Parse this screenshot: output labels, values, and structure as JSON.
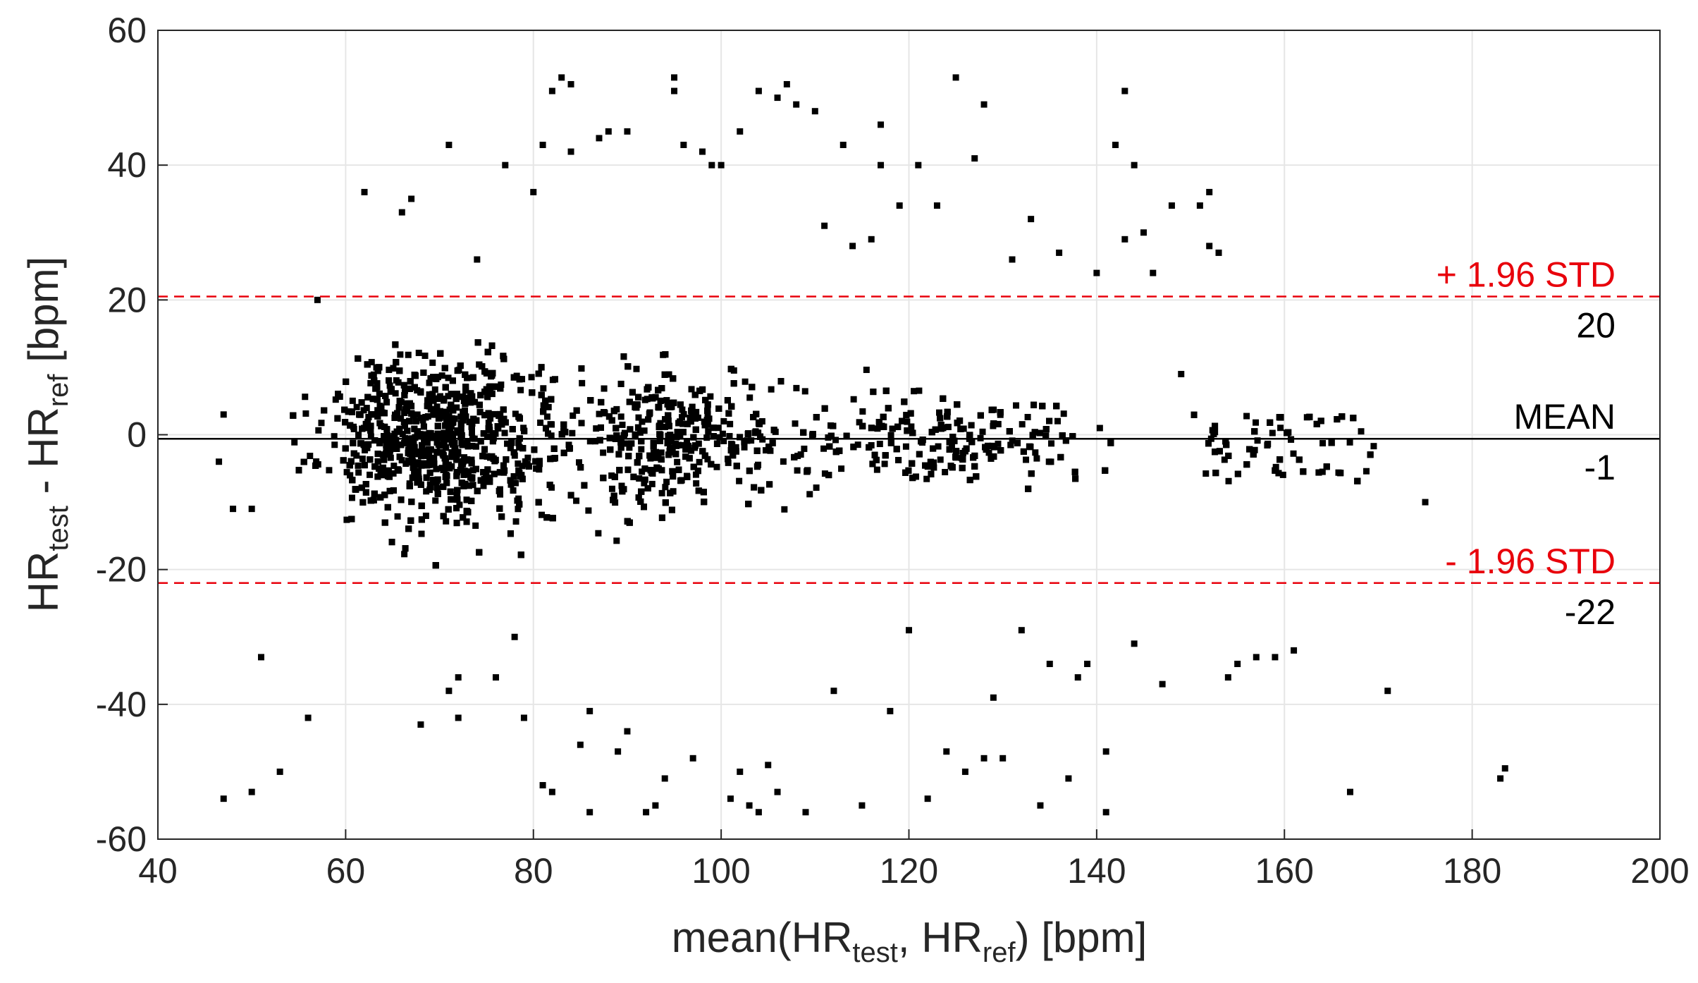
{
  "chart_data": {
    "type": "scatter",
    "title": "",
    "xlabel": {
      "prefix": "mean(HR",
      "sub1": "test",
      "middle": ", HR",
      "sub2": "ref",
      "suffix": ") [bpm]"
    },
    "ylabel": {
      "prefix": "HR",
      "sub1": "test",
      "middle": " - HR",
      "sub2": "ref",
      "suffix": " [bpm]"
    },
    "xlim": [
      40,
      200
    ],
    "ylim": [
      -60,
      60
    ],
    "xticks": [
      40,
      60,
      80,
      100,
      120,
      140,
      160,
      180,
      200
    ],
    "yticks": [
      -60,
      -40,
      -20,
      0,
      20,
      40,
      60
    ],
    "grid": true,
    "marker_color": "#000000",
    "reference_lines": [
      {
        "name": "upper",
        "label": "+ 1.96 STD",
        "value_label": "20",
        "y": 20.5,
        "style": "dashed",
        "color": "#e8000b"
      },
      {
        "name": "mean",
        "label": "MEAN",
        "value_label": "-1",
        "y": -0.6,
        "style": "solid",
        "color": "#000000"
      },
      {
        "name": "lower",
        "label": "- 1.96 STD",
        "value_label": "-22",
        "y": -22,
        "style": "dashed",
        "color": "#e8000b"
      }
    ],
    "outlier_points": [
      [
        47,
        -54
      ],
      [
        50,
        -53
      ],
      [
        51,
        -33
      ],
      [
        53,
        -50
      ],
      [
        56,
        -42
      ],
      [
        48,
        -11
      ],
      [
        50,
        -11
      ],
      [
        46.5,
        -4
      ],
      [
        47,
        3
      ],
      [
        57,
        20
      ],
      [
        62,
        36
      ],
      [
        66,
        33
      ],
      [
        67,
        35
      ],
      [
        68,
        -43
      ],
      [
        71,
        -38
      ],
      [
        71,
        43
      ],
      [
        72,
        -36
      ],
      [
        72,
        -42
      ],
      [
        74,
        26
      ],
      [
        76,
        -36
      ],
      [
        77,
        40
      ],
      [
        78,
        -30
      ],
      [
        79,
        -42
      ],
      [
        80,
        36
      ],
      [
        81,
        -52
      ],
      [
        82,
        -53
      ],
      [
        81,
        43
      ],
      [
        82,
        51
      ],
      [
        83,
        53
      ],
      [
        84,
        52
      ],
      [
        84,
        42
      ],
      [
        85,
        -46
      ],
      [
        86,
        -56
      ],
      [
        86,
        -41
      ],
      [
        87,
        44
      ],
      [
        88,
        45
      ],
      [
        89,
        -47
      ],
      [
        90,
        45
      ],
      [
        90,
        -44
      ],
      [
        92,
        -56
      ],
      [
        93,
        -55
      ],
      [
        94,
        -51
      ],
      [
        95,
        51
      ],
      [
        95,
        53
      ],
      [
        96,
        43
      ],
      [
        97,
        -48
      ],
      [
        98,
        42
      ],
      [
        99,
        40
      ],
      [
        100,
        40
      ],
      [
        101,
        -54
      ],
      [
        102,
        45
      ],
      [
        102,
        -50
      ],
      [
        103,
        -55
      ],
      [
        104,
        -56
      ],
      [
        104,
        51
      ],
      [
        105,
        -49
      ],
      [
        106,
        -53
      ],
      [
        106,
        50
      ],
      [
        107,
        52
      ],
      [
        108,
        49
      ],
      [
        109,
        -56
      ],
      [
        110,
        48
      ],
      [
        111,
        31
      ],
      [
        112,
        -38
      ],
      [
        113,
        43
      ],
      [
        114,
        28
      ],
      [
        115,
        -55
      ],
      [
        116,
        29
      ],
      [
        117,
        46
      ],
      [
        117,
        40
      ],
      [
        118,
        -41
      ],
      [
        119,
        34
      ],
      [
        120,
        -29
      ],
      [
        121,
        40
      ],
      [
        122,
        -54
      ],
      [
        123,
        34
      ],
      [
        124,
        -47
      ],
      [
        125,
        53
      ],
      [
        126,
        -50
      ],
      [
        127,
        41
      ],
      [
        128,
        49
      ],
      [
        128,
        -48
      ],
      [
        129,
        -39
      ],
      [
        130,
        -48
      ],
      [
        131,
        26
      ],
      [
        132,
        -29
      ],
      [
        133,
        32
      ],
      [
        134,
        -55
      ],
      [
        135,
        -34
      ],
      [
        136,
        27
      ],
      [
        137,
        -51
      ],
      [
        138,
        -36
      ],
      [
        139,
        -34
      ],
      [
        140,
        24
      ],
      [
        141,
        -56
      ],
      [
        141,
        -47
      ],
      [
        142,
        43
      ],
      [
        143,
        29
      ],
      [
        143,
        51
      ],
      [
        144,
        40
      ],
      [
        144,
        -31
      ],
      [
        145,
        30
      ],
      [
        146,
        24
      ],
      [
        147,
        -37
      ],
      [
        148,
        34
      ],
      [
        149,
        9
      ],
      [
        151,
        34
      ],
      [
        152,
        36
      ],
      [
        152,
        28
      ],
      [
        153,
        27
      ],
      [
        154,
        -36
      ],
      [
        155,
        -34
      ],
      [
        157,
        -33
      ],
      [
        159,
        -33
      ],
      [
        161,
        -32
      ],
      [
        167,
        -53
      ],
      [
        171,
        -38
      ],
      [
        175,
        -10
      ],
      [
        183,
        -51
      ],
      [
        183.5,
        -49.5
      ]
    ]
  }
}
